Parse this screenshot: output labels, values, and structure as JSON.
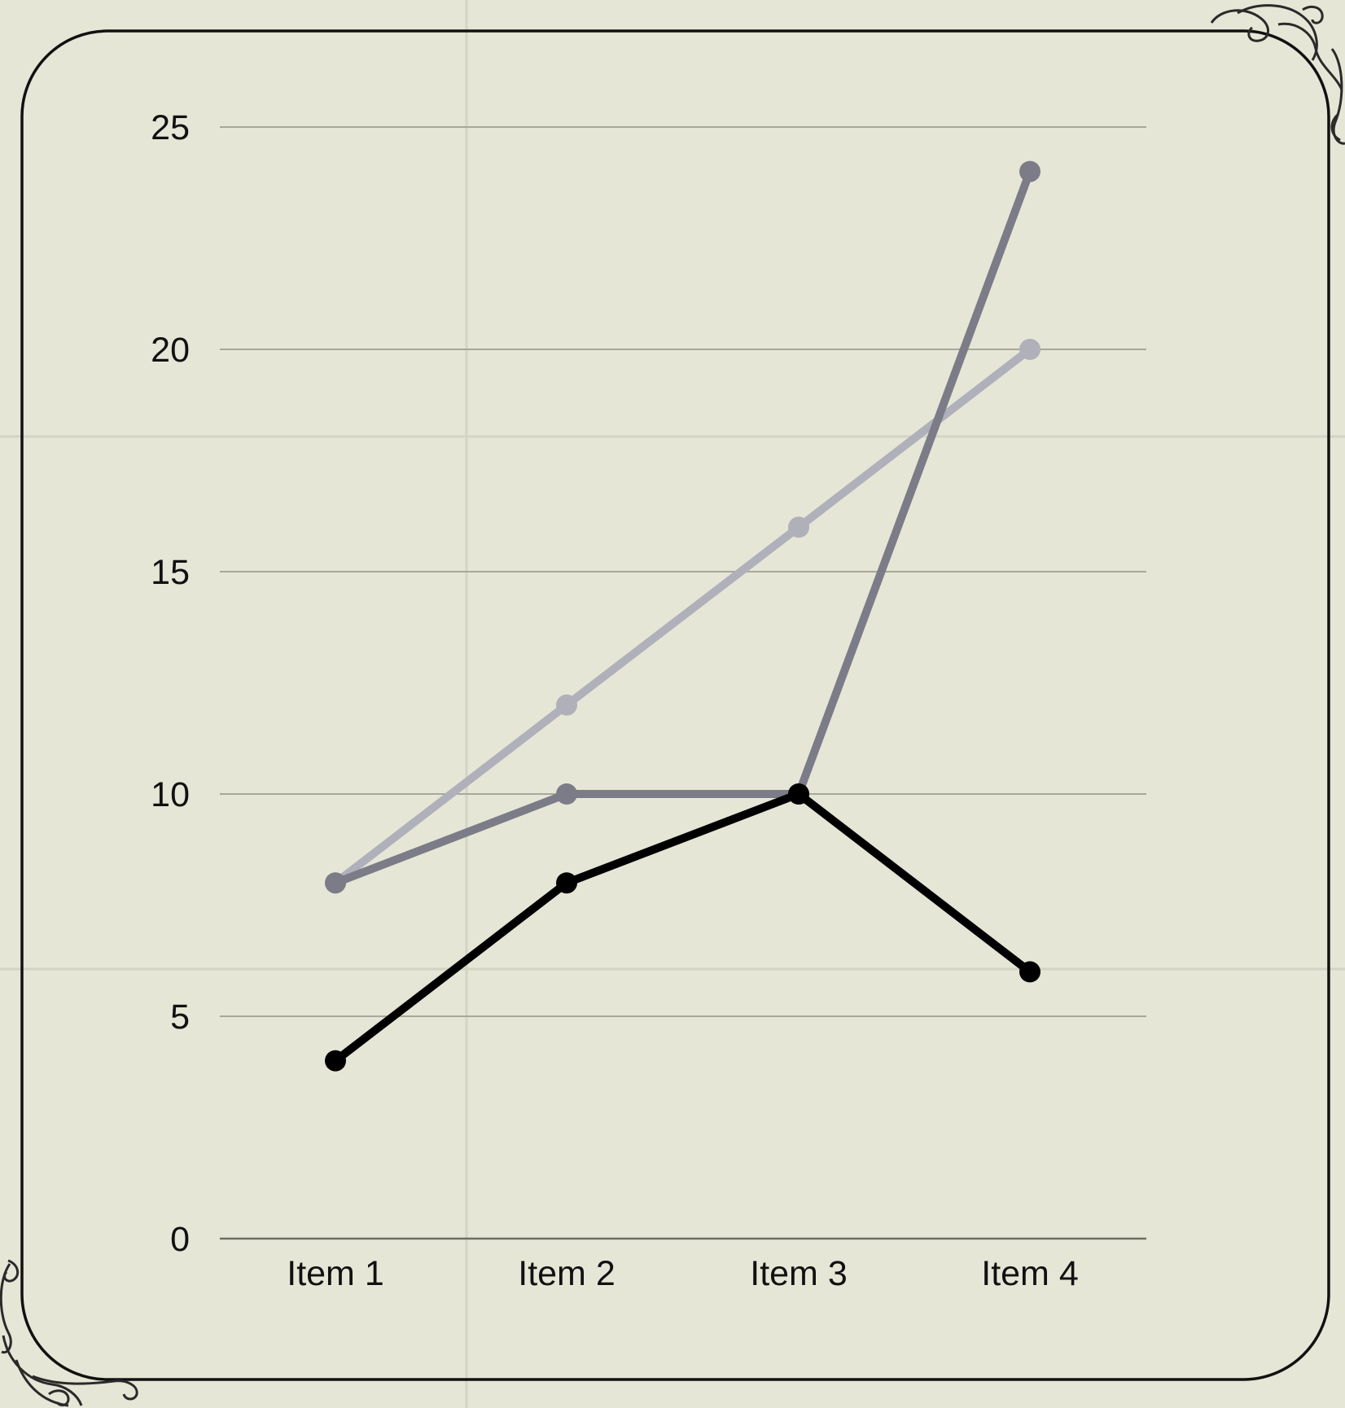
{
  "chart_data": {
    "type": "line",
    "title": "",
    "xlabel": "",
    "ylabel": "",
    "categories": [
      "Item 1",
      "Item 2",
      "Item 3",
      "Item 4"
    ],
    "yticks": [
      "0",
      "5",
      "10",
      "15",
      "20",
      "25"
    ],
    "ylim": [
      0,
      25
    ],
    "grid": "horizontal",
    "legend": "none",
    "series": [
      {
        "values": [
          8,
          12,
          16,
          20
        ],
        "color": "#b0b0bb"
      },
      {
        "values": [
          8,
          10,
          10,
          24
        ],
        "color": "#7b7c87"
      },
      {
        "values": [
          4,
          8,
          10,
          6
        ],
        "color": "#000000"
      }
    ]
  },
  "colors": {
    "background": "#e6e6d7",
    "panel_border": "#111111",
    "gridline": "#a7a899",
    "page_grid": "#d3d4c4",
    "axis_line": "#6d6e62",
    "ornament": "#2a2a2a"
  }
}
